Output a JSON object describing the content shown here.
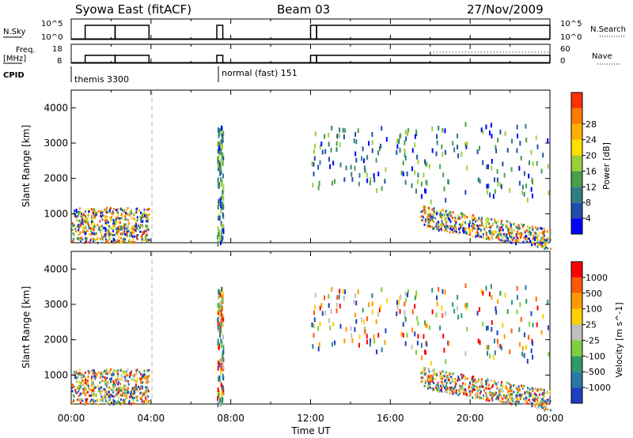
{
  "header": {
    "station": "Syowa East (fitACF)",
    "beam": "Beam 03",
    "date": "27/Nov/2009"
  },
  "top_panels": {
    "nsky_label": "N.Sky",
    "nsky_hi": "10^5",
    "nsky_lo": "10^0",
    "nsearch_label": "N.Search",
    "nsearch_hi": "10^5",
    "nsearch_lo": "10^0",
    "freq_label_1": "Freq.",
    "freq_label_2": "[MHz]",
    "freq_hi": "18",
    "freq_lo": "8",
    "nave_label": "Nave",
    "nave_hi": "60",
    "nave_lo": "0",
    "cpid_label": "CPID",
    "cpid_1": "themis 3300",
    "cpid_2": "normal (fast) 151"
  },
  "power_colorbar": {
    "label": "Power [dB]",
    "ticks": [
      "4",
      "8",
      "12",
      "16",
      "20",
      "24",
      "28"
    ],
    "colors": [
      "#0000ff",
      "#1f4fa8",
      "#2f7f7f",
      "#4aa04a",
      "#9bcf3a",
      "#ffe000",
      "#ffb000",
      "#ff7a00",
      "#ff3000"
    ]
  },
  "velocity_colorbar": {
    "label": "Velocity [m s^-1]",
    "ticks": [
      "1000",
      "500",
      "100",
      "25",
      "-25",
      "-100",
      "-500",
      "-1000"
    ],
    "colors": [
      "#1f3fbf",
      "#2a78a6",
      "#2f9a6a",
      "#7fcf3f",
      "#bfbfbf",
      "#ffd000",
      "#ff9a00",
      "#ff5a00",
      "#ff0000"
    ]
  },
  "chart_data": {
    "type": "heatmap",
    "xlabel": "Time UT",
    "ylabel": "Slant Range [km]",
    "x_ticks": [
      "00:00",
      "04:00",
      "08:00",
      "12:00",
      "16:00",
      "20:00",
      "00:00"
    ],
    "y_ticks": [
      "1000",
      "2000",
      "3000",
      "4000"
    ],
    "xlim_hours": [
      0,
      24
    ],
    "ylim_km": [
      180,
      4500
    ],
    "freq_ylim_mhz": [
      8,
      18
    ],
    "nave_ylim": [
      0,
      60
    ],
    "scatter_regions": [
      {
        "t0": 0.0,
        "t1": 3.9,
        "r0": 200,
        "r1": 1200,
        "density": "high"
      },
      {
        "t0": 7.3,
        "t1": 7.6,
        "r0": 200,
        "r1": 3500,
        "density": "sparse"
      },
      {
        "t0": 12.0,
        "t1": 17.5,
        "r0": 1700,
        "r1": 3500,
        "density": "sparse"
      },
      {
        "t0": 17.5,
        "t1": 24.0,
        "r0": 400,
        "r1": 1400,
        "density": "high"
      },
      {
        "t0": 17.5,
        "t1": 24.0,
        "r0": 1400,
        "r1": 3600,
        "density": "sparse"
      }
    ],
    "gap_hours": [
      [
        3.9,
        7.3
      ],
      [
        7.6,
        12.0
      ]
    ],
    "dashed_line_hour": 4.0
  }
}
